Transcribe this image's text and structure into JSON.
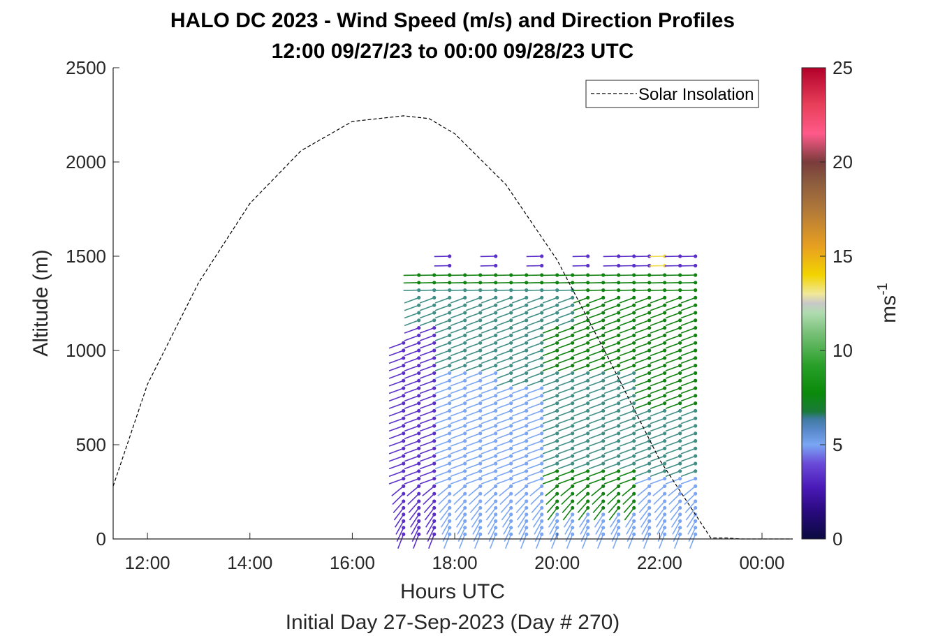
{
  "chart_data": {
    "type": "scatter",
    "title": "HALO DC 2023 - Wind Speed (m/s) and Direction Profiles",
    "subtitle": "12:00 09/27/23 to 00:00 09/28/23  UTC",
    "xlabel": "Hours UTC",
    "xlabel2": "Initial Day 27-Sep-2023 (Day # 270)",
    "ylabel": "Altitude (m)",
    "colorbar_label": "ms",
    "colorbar_label_sup": "-1",
    "xlim": [
      11.33,
      24.6
    ],
    "ylim": [
      0,
      2500
    ],
    "x_ticks": [
      {
        "value": 12,
        "label": "12:00"
      },
      {
        "value": 14,
        "label": "14:00"
      },
      {
        "value": 16,
        "label": "16:00"
      },
      {
        "value": 18,
        "label": "18:00"
      },
      {
        "value": 20,
        "label": "20:00"
      },
      {
        "value": 22,
        "label": "22:00"
      },
      {
        "value": 24,
        "label": "00:00"
      }
    ],
    "y_ticks": [
      {
        "value": 0,
        "label": "0"
      },
      {
        "value": 500,
        "label": "500"
      },
      {
        "value": 1000,
        "label": "1000"
      },
      {
        "value": 1500,
        "label": "1500"
      },
      {
        "value": 2000,
        "label": "2000"
      },
      {
        "value": 2500,
        "label": "2500"
      }
    ],
    "colorbar_ticks": [
      {
        "value": 0,
        "label": "0"
      },
      {
        "value": 5,
        "label": "5"
      },
      {
        "value": 10,
        "label": "10"
      },
      {
        "value": 15,
        "label": "15"
      },
      {
        "value": 20,
        "label": "20"
      },
      {
        "value": 25,
        "label": "25"
      }
    ],
    "colorbar_range": [
      0,
      25
    ],
    "legend": {
      "label": "Solar Insolation",
      "position": "top-right",
      "style": "dashed",
      "color": "#000000"
    },
    "solar_insolation": {
      "x": [
        11.33,
        12,
        13,
        14,
        15,
        16,
        17,
        17.5,
        18,
        19,
        20,
        21,
        22,
        23,
        23.3,
        23.6,
        24,
        24.6
      ],
      "y": [
        280,
        820,
        1360,
        1780,
        2060,
        2215,
        2245,
        2230,
        2150,
        1880,
        1480,
        960,
        420,
        5,
        5,
        0,
        0,
        0
      ]
    },
    "profiles": {
      "times": [
        17.0,
        17.3,
        17.6,
        17.9,
        18.2,
        18.5,
        18.8,
        19.1,
        19.4,
        19.7,
        20.0,
        20.3,
        20.6,
        20.9,
        21.2,
        21.5,
        21.8,
        22.1,
        22.4,
        22.7
      ],
      "altitude_levels_m": [
        25,
        60,
        95,
        130,
        165,
        200,
        240,
        280,
        320,
        360,
        400,
        440,
        480,
        520,
        560,
        600,
        640,
        680,
        720,
        760,
        800,
        840,
        880,
        920,
        960,
        1000,
        1040,
        1080,
        1120,
        1160,
        1200,
        1240,
        1280,
        1320,
        1360,
        1400,
        1450,
        1500
      ],
      "note": "wind barbs: dot marks the measurement, line points along wind direction, color = speed (m/s)"
    },
    "colors": {
      "axes": "#262626",
      "background": "#ffffff",
      "colormap": [
        "#0a0a40",
        "#3a0fa0",
        "#6a3fd0",
        "#7aa6f4",
        "#3a7cb0",
        "#4e9a8a",
        "#0a7a0a",
        "#18a818",
        "#a8d8a0",
        "#c9c9c9",
        "#f5e06a",
        "#f2c800",
        "#e8a020",
        "#b87a2e",
        "#8a5a3a",
        "#7a3a3a",
        "#ff5a8a",
        "#e8405a",
        "#b3002a"
      ]
    }
  }
}
